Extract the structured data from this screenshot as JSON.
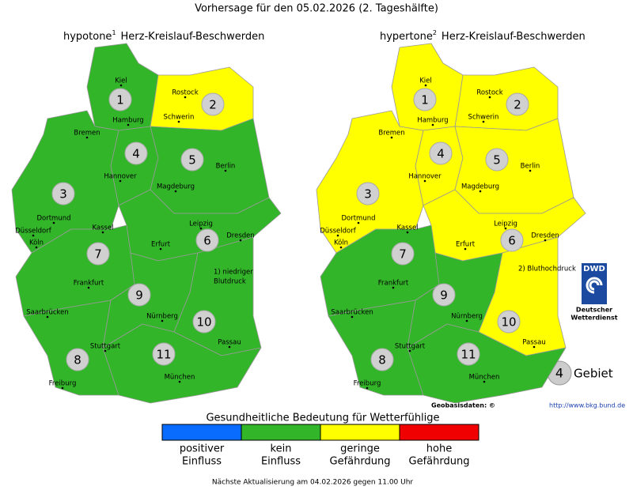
{
  "title": "Vorhersage für den 05.02.2026 (2. Tageshälfte)",
  "regions": [
    "1",
    "2",
    "3",
    "4",
    "5",
    "6",
    "7",
    "8",
    "9",
    "10",
    "11"
  ],
  "cities": [
    "Kiel",
    "Rostock",
    "Hamburg",
    "Schwerin",
    "Bremen",
    "Hannover",
    "Berlin",
    "Magdeburg",
    "Dortmund",
    "Düsseldorf",
    "Köln",
    "Kassel",
    "Leipzig",
    "Dresden",
    "Erfurt",
    "Frankfurt",
    "Saarbrücken",
    "Nürnberg",
    "Passau",
    "Stuttgart",
    "München",
    "Freiburg"
  ],
  "maps": [
    {
      "title": "hypotone",
      "footnote_mark": "1",
      "title_rest": "Herz-Kreislauf-Beschwerden",
      "note": [
        "1) niedriger",
        "Blutdruck"
      ],
      "levels": [
        1,
        2,
        1,
        1,
        1,
        1,
        1,
        1,
        1,
        1,
        1
      ]
    },
    {
      "title": "hypertone",
      "footnote_mark": "2",
      "title_rest": "Herz-Kreislauf-Beschwerden",
      "note": [
        "2) Bluthochdruck"
      ],
      "levels": [
        2,
        2,
        2,
        2,
        2,
        2,
        1,
        1,
        1,
        2,
        1
      ]
    }
  ],
  "logo": {
    "abbr": "DWD",
    "name": [
      "Deutscher",
      "Wetterdienst"
    ]
  },
  "area_legend": {
    "symbol": "4",
    "label": "Gebiet"
  },
  "geobasis": {
    "label": "Geobasisdaten: ©",
    "link": "http://www.bkg.bund.de"
  },
  "scale": {
    "title": "Gesundheitliche Bedeutung für Wetterfühlige",
    "items": [
      {
        "color": "#0a6cff",
        "label": [
          "positiver",
          "Einfluss"
        ]
      },
      {
        "color": "#33b52a",
        "label": [
          "kein",
          "Einfluss"
        ]
      },
      {
        "color": "#ffff00",
        "label": [
          "geringe",
          "Gefährdung"
        ]
      },
      {
        "color": "#f00000",
        "label": [
          "hohe",
          "Gefährdung"
        ]
      }
    ]
  },
  "footer": "Nächste Aktualisierung am 04.02.2026 gegen 11.00 Uhr"
}
